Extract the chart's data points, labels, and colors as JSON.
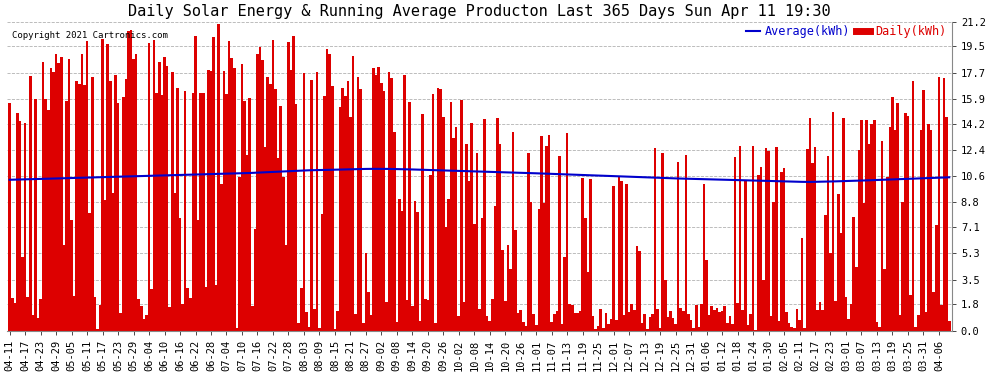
{
  "title": "Daily Solar Energy & Running Average Producton Last 365 Days Sun Apr 11 19:30",
  "copyright": "Copyright 2021 Cartronics.com",
  "ylabel_right_ticks": [
    0.0,
    1.8,
    3.5,
    5.3,
    7.1,
    8.8,
    10.6,
    12.4,
    14.2,
    15.9,
    17.7,
    19.5,
    21.2
  ],
  "bar_color": "#dd0000",
  "avg_color": "#0000cc",
  "bg_color": "#ffffff",
  "grid_color": "#aaaaaa",
  "title_fontsize": 11,
  "tick_fontsize": 7.5,
  "legend_avg": "Average(kWh)",
  "legend_daily": "Daily(kWh)",
  "legend_avg_color": "#0000cc",
  "legend_daily_color": "#dd0000",
  "num_days": 365,
  "ylim_max": 21.2,
  "xtick_labels": [
    "04-11",
    "04-17",
    "04-23",
    "04-29",
    "05-05",
    "05-11",
    "05-17",
    "05-23",
    "05-29",
    "06-04",
    "06-10",
    "06-16",
    "06-22",
    "06-28",
    "07-04",
    "07-10",
    "07-16",
    "07-22",
    "07-28",
    "08-03",
    "08-09",
    "08-15",
    "08-21",
    "08-27",
    "09-02",
    "09-08",
    "09-14",
    "09-20",
    "09-26",
    "10-02",
    "10-08",
    "10-14",
    "10-20",
    "10-26",
    "11-01",
    "11-07",
    "11-13",
    "11-19",
    "11-25",
    "12-01",
    "12-07",
    "12-13",
    "12-19",
    "12-25",
    "12-31",
    "01-06",
    "01-12",
    "01-18",
    "01-24",
    "01-30",
    "02-05",
    "02-11",
    "02-17",
    "02-23",
    "03-01",
    "03-07",
    "03-13",
    "03-19",
    "03-25",
    "03-31",
    "04-06"
  ],
  "xtick_step": 6,
  "avg_line_points": [
    10.35,
    10.38,
    10.41,
    10.44,
    10.47,
    10.5,
    10.53,
    10.56,
    10.59,
    10.62,
    10.65,
    10.68,
    10.71,
    10.74,
    10.77,
    10.8,
    10.85,
    10.9,
    10.95,
    11.0,
    11.02,
    11.05,
    11.08,
    11.1,
    11.1,
    11.08,
    11.05,
    11.02,
    10.98,
    10.95,
    10.92,
    10.88,
    10.85,
    10.82,
    10.78,
    10.74,
    10.7,
    10.66,
    10.62,
    10.58,
    10.54,
    10.5,
    10.46,
    10.43,
    10.4,
    10.37,
    10.34,
    10.31,
    10.28,
    10.25,
    10.22,
    10.2,
    10.22,
    10.25,
    10.28,
    10.32,
    10.36,
    10.4,
    10.44,
    10.48,
    10.52
  ]
}
